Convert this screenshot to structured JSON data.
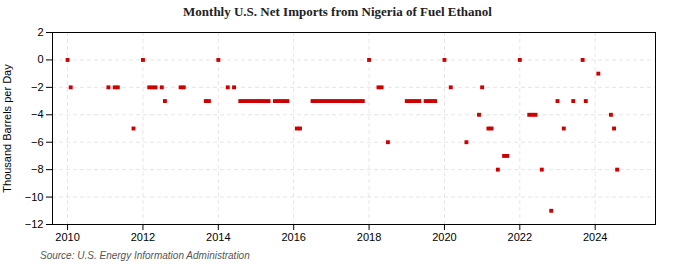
{
  "chart_data": {
    "type": "scatter",
    "title": "Monthly U.S. Net Imports from Nigeria of Fuel Ethanol",
    "ylabel": "Thousand Barrels per Day",
    "source": "Source: U.S. Energy Information Administration",
    "color": "#cc0000",
    "marker": "square",
    "grid": true,
    "xlim": [
      2009.6,
      2025.6
    ],
    "xticks": [
      2010,
      2012,
      2014,
      2016,
      2018,
      2020,
      2022,
      2024
    ],
    "ylim": [
      -12,
      2
    ],
    "yticks": [
      2,
      0,
      -2,
      -4,
      -6,
      -8,
      -10,
      -12
    ],
    "x": [
      2010.0,
      2010.083,
      2011.083,
      2011.25,
      2011.333,
      2011.75,
      2012.0,
      2012.167,
      2012.25,
      2012.333,
      2012.5,
      2012.583,
      2013.0,
      2013.083,
      2013.667,
      2013.75,
      2014.0,
      2014.25,
      2014.417,
      2014.583,
      2014.667,
      2014.75,
      2014.833,
      2014.917,
      2015.0,
      2015.083,
      2015.167,
      2015.25,
      2015.333,
      2015.5,
      2015.583,
      2015.667,
      2015.75,
      2015.833,
      2016.083,
      2016.167,
      2016.5,
      2016.583,
      2016.667,
      2016.75,
      2016.833,
      2016.917,
      2017.0,
      2017.083,
      2017.167,
      2017.25,
      2017.333,
      2017.417,
      2017.5,
      2017.583,
      2017.667,
      2017.75,
      2017.833,
      2018.0,
      2018.25,
      2018.333,
      2018.5,
      2019.0,
      2019.083,
      2019.167,
      2019.25,
      2019.333,
      2019.5,
      2019.583,
      2019.667,
      2019.75,
      2020.0,
      2020.167,
      2020.583,
      2020.917,
      2021.0,
      2021.167,
      2021.25,
      2021.417,
      2021.583,
      2021.667,
      2022.0,
      2022.25,
      2022.333,
      2022.417,
      2022.583,
      2022.833,
      2023.0,
      2023.167,
      2023.417,
      2023.667,
      2023.75,
      2024.083,
      2024.417,
      2024.5,
      2024.583
    ],
    "values": [
      0,
      -2,
      -2,
      -2,
      -2,
      -5,
      0,
      -2,
      -2,
      -2,
      -2,
      -3,
      -2,
      -2,
      -3,
      -3,
      0,
      -2,
      -2,
      -3,
      -3,
      -3,
      -3,
      -3,
      -3,
      -3,
      -3,
      -3,
      -3,
      -3,
      -3,
      -3,
      -3,
      -3,
      -5,
      -5,
      -3,
      -3,
      -3,
      -3,
      -3,
      -3,
      -3,
      -3,
      -3,
      -3,
      -3,
      -3,
      -3,
      -3,
      -3,
      -3,
      -3,
      0,
      -2,
      -2,
      -6,
      -3,
      -3,
      -3,
      -3,
      -3,
      -3,
      -3,
      -3,
      -3,
      0,
      -2,
      -6,
      -4,
      -2,
      -5,
      -5,
      -8,
      -7,
      -7,
      0,
      -4,
      -4,
      -4,
      -8,
      -11,
      -3,
      -5,
      -3,
      0,
      -3,
      -1,
      -4,
      -5,
      -8
    ]
  }
}
